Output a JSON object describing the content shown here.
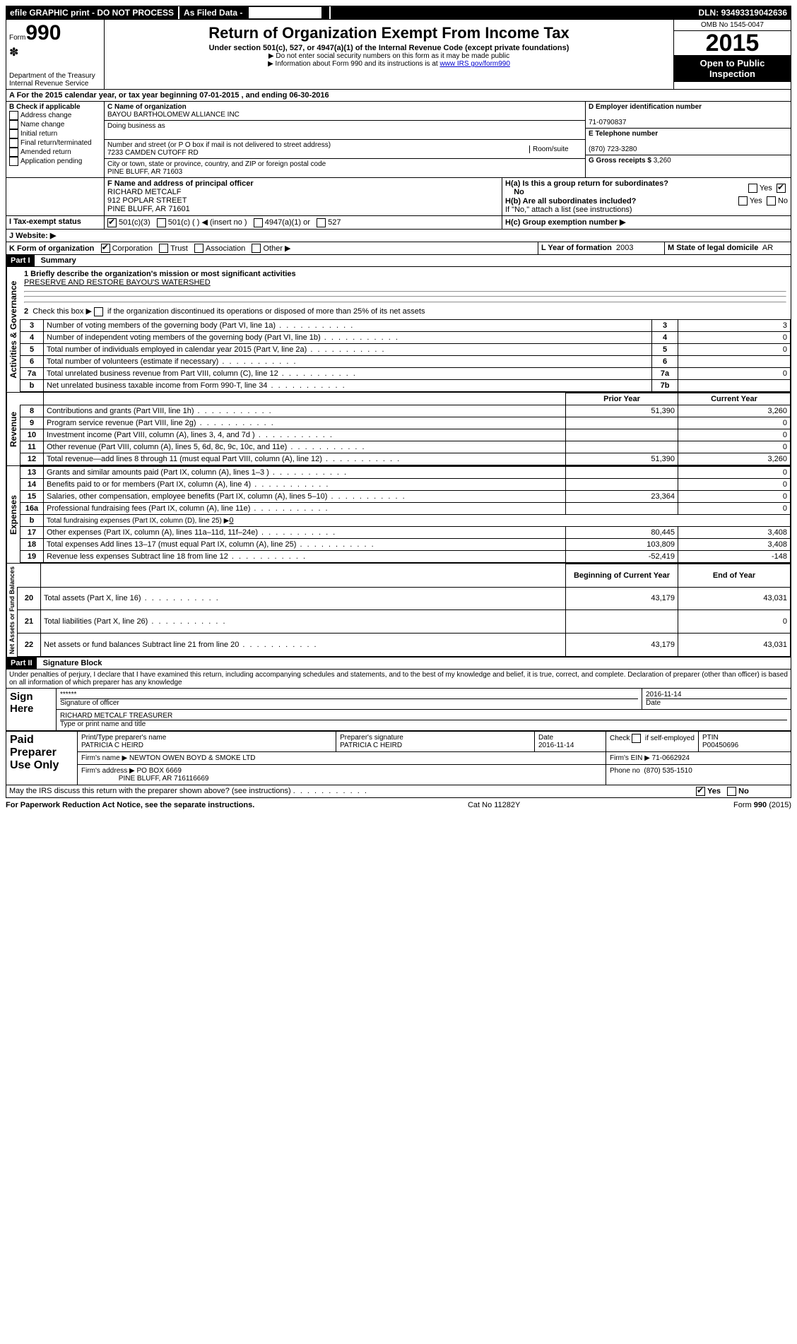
{
  "header_bar": {
    "efile": "efile GRAPHIC print - DO NOT PROCESS",
    "asfiled": "As Filed Data -",
    "dln_label": "DLN:",
    "dln": "93493319042636"
  },
  "form_id": {
    "form_word": "Form",
    "num": "990",
    "dept": "Department of the Treasury",
    "irs": "Internal Revenue Service"
  },
  "title_block": {
    "title": "Return of Organization Exempt From Income Tax",
    "sub": "Under section 501(c), 527, or 4947(a)(1) of the Internal Revenue Code (except private foundations)",
    "note1": "▶ Do not enter social security numbers on this form as it may be made public",
    "note2_pre": "▶ Information about Form 990 and its instructions is at ",
    "note2_link": "www IRS gov/form990"
  },
  "top_right": {
    "omb": "OMB No 1545-0047",
    "year": "2015",
    "inspect1": "Open to Public",
    "inspect2": "Inspection"
  },
  "lineA": {
    "text_pre": "A  For the 2015 calendar year, or tax year beginning ",
    "begin": "07-01-2015",
    "mid": " , and ending ",
    "end": "06-30-2016"
  },
  "boxB": {
    "header": "B  Check if applicable",
    "items": [
      "Address change",
      "Name change",
      "Initial return",
      "Final return/terminated",
      "Amended return",
      "Application pending"
    ]
  },
  "boxC": {
    "label": "C Name of organization",
    "org": "BAYOU BARTHOLOMEW ALLIANCE INC",
    "dba_label": "Doing business as",
    "dba": "",
    "addr_label": "Number and street (or P O box if mail is not delivered to street address)",
    "room_label": "Room/suite",
    "addr": "7233 CAMDEN CUTOFF RD",
    "city_label": "City or town, state or province, country, and ZIP or foreign postal code",
    "city": "PINE BLUFF, AR  71603"
  },
  "boxD": {
    "label": "D Employer identification number",
    "val": "71-0790837"
  },
  "boxE": {
    "label": "E Telephone number",
    "val": "(870) 723-3280"
  },
  "boxG": {
    "label": "G Gross receipts $",
    "val": "3,260"
  },
  "boxF": {
    "label": "F  Name and address of principal officer",
    "l1": "RICHARD METCALF",
    "l2": "912 POPLAR STREET",
    "l3": "PINE BLUFF, AR  71601"
  },
  "boxH": {
    "a": "H(a)  Is this a group return for subordinates?",
    "a_no": "No",
    "yes": "Yes",
    "b": "H(b)  Are all subordinates included?",
    "b_note": "If \"No,\" attach a list (see instructions)",
    "c": "H(c)  Group exemption number ▶",
    "yn_yes": "Yes",
    "yn_no": "No"
  },
  "boxI": {
    "label": "I   Tax-exempt status",
    "o1": "501(c)(3)",
    "o2": "501(c) ( ) ◀ (insert no )",
    "o3": "4947(a)(1) or",
    "o4": "527"
  },
  "boxJ": {
    "label": "J   Website: ▶"
  },
  "boxK": {
    "label": "K Form of organization",
    "o1": "Corporation",
    "o2": "Trust",
    "o3": "Association",
    "o4": "Other ▶"
  },
  "boxL": {
    "label": "L Year of formation",
    "val": "2003"
  },
  "boxM": {
    "label": "M State of legal domicile",
    "val": "AR"
  },
  "part1": {
    "tag": "Part I",
    "title": "Summary",
    "l1": "1 Briefly describe the organization's mission or most significant activities",
    "mission": "PRESERVE AND RESTORE BAYOU'S WATERSHED",
    "l2": "2  Check this box ▶        if the organization discontinued its operations or disposed of more than 25% of its net assets",
    "rows_gov": [
      {
        "n": "3",
        "t": "Number of voting members of the governing body (Part VI, line 1a)",
        "k": "3",
        "v": "3"
      },
      {
        "n": "4",
        "t": "Number of independent voting members of the governing body (Part VI, line 1b)",
        "k": "4",
        "v": "0"
      },
      {
        "n": "5",
        "t": "Total number of individuals employed in calendar year 2015 (Part V, line 2a)",
        "k": "5",
        "v": "0"
      },
      {
        "n": "6",
        "t": "Total number of volunteers (estimate if necessary)",
        "k": "6",
        "v": ""
      },
      {
        "n": "7a",
        "t": "Total unrelated business revenue from Part VIII, column (C), line 12",
        "k": "7a",
        "v": "0"
      },
      {
        "n": "b",
        "t": "Net unrelated business taxable income from Form 990-T, line 34",
        "k": "7b",
        "v": ""
      }
    ],
    "col_prior": "Prior Year",
    "col_curr": "Current Year",
    "rows_rev": [
      {
        "n": "8",
        "t": "Contributions and grants (Part VIII, line 1h)",
        "p": "51,390",
        "c": "3,260"
      },
      {
        "n": "9",
        "t": "Program service revenue (Part VIII, line 2g)",
        "p": "",
        "c": "0"
      },
      {
        "n": "10",
        "t": "Investment income (Part VIII, column (A), lines 3, 4, and 7d )",
        "p": "",
        "c": "0"
      },
      {
        "n": "11",
        "t": "Other revenue (Part VIII, column (A), lines 5, 6d, 8c, 9c, 10c, and 11e)",
        "p": "",
        "c": "0"
      },
      {
        "n": "12",
        "t": "Total revenue—add lines 8 through 11 (must equal Part VIII, column (A), line 12)",
        "p": "51,390",
        "c": "3,260"
      }
    ],
    "rows_exp": [
      {
        "n": "13",
        "t": "Grants and similar amounts paid (Part IX, column (A), lines 1–3 )",
        "p": "",
        "c": "0"
      },
      {
        "n": "14",
        "t": "Benefits paid to or for members (Part IX, column (A), line 4)",
        "p": "",
        "c": "0"
      },
      {
        "n": "15",
        "t": "Salaries, other compensation, employee benefits (Part IX, column (A), lines 5–10)",
        "p": "23,364",
        "c": "0"
      },
      {
        "n": "16a",
        "t": "Professional fundraising fees (Part IX, column (A), line 11e)",
        "p": "",
        "c": "0"
      },
      {
        "n": "b",
        "t": "Total fundraising expenses (Part IX, column (D), line 25) ▶",
        "p": "—",
        "c": "—",
        "fund": "0"
      },
      {
        "n": "17",
        "t": "Other expenses (Part IX, column (A), lines 11a–11d, 11f–24e)",
        "p": "80,445",
        "c": "3,408"
      },
      {
        "n": "18",
        "t": "Total expenses Add lines 13–17 (must equal Part IX, column (A), line 25)",
        "p": "103,809",
        "c": "3,408"
      },
      {
        "n": "19",
        "t": "Revenue less expenses Subtract line 18 from line 12",
        "p": "-52,419",
        "c": "-148"
      }
    ],
    "col_beg": "Beginning of Current Year",
    "col_end": "End of Year",
    "rows_net": [
      {
        "n": "20",
        "t": "Total assets (Part X, line 16)",
        "p": "43,179",
        "c": "43,031"
      },
      {
        "n": "21",
        "t": "Total liabilities (Part X, line 26)",
        "p": "",
        "c": "0"
      },
      {
        "n": "22",
        "t": "Net assets or fund balances Subtract line 21 from line 20",
        "p": "43,179",
        "c": "43,031"
      }
    ],
    "side_gov": "Activities & Governance",
    "side_rev": "Revenue",
    "side_exp": "Expenses",
    "side_net": "Net Assets or Fund Balances"
  },
  "part2": {
    "tag": "Part II",
    "title": "Signature Block",
    "decl": "Under penalties of perjury, I declare that I have examined this return, including accompanying schedules and statements, and to the best of my knowledge and belief, it is true, correct, and complete. Declaration of preparer (other than officer) is based on all information of which preparer has any knowledge",
    "sign_here": "Sign Here",
    "sig_stars": "******",
    "sig_label": "Signature of officer",
    "sig_date": "2016-11-14",
    "date_label": "Date",
    "officer": "RICHARD METCALF TREASURER",
    "officer_label": "Type or print name and title",
    "paid": "Paid Preparer Use Only",
    "prep_name_label": "Print/Type preparer's name",
    "prep_name": "PATRICIA C HEIRD",
    "prep_sig_label": "Preparer's signature",
    "prep_sig": "PATRICIA C HEIRD",
    "prep_date": "2016-11-14",
    "check_self": "Check         if self-employed",
    "ptin_label": "PTIN",
    "ptin": "P00450696",
    "firm_name_label": "Firm's name   ▶",
    "firm_name": "NEWTON OWEN BOYD & SMOKE LTD",
    "firm_ein_label": "Firm's EIN ▶",
    "firm_ein": "71-0662924",
    "firm_addr_label": "Firm's address ▶",
    "firm_addr1": "PO BOX 6669",
    "firm_addr2": "PINE BLUFF, AR  716116669",
    "phone_label": "Phone no",
    "phone": "(870) 535-1510",
    "discuss": "May the IRS discuss this return with the preparer shown above? (see instructions)",
    "yes": "Yes",
    "no": "No"
  },
  "footer": {
    "left": "For Paperwork Reduction Act Notice, see the separate instructions.",
    "mid": "Cat No 11282Y",
    "right": "Form 990 (2015)"
  }
}
